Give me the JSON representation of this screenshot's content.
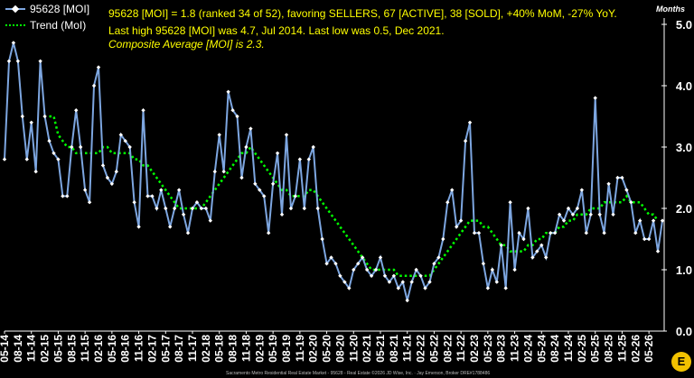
{
  "info": {
    "line1": "95628 [MOI] = 1.8 (ranked 34 of 52), favoring SELLERS, 67 [ACTIVE], 38 [SOLD], +40% MoM, -27% YoY.",
    "line2": "Last high 95628 [MOI] was 4.7, Jul 2014. Last low was 0.5, Dec 2021.",
    "line3": "Composite Average [MOI] is 2.3."
  },
  "footer": "Sacramento Metro Residential Real Estate Market - 95628 - Real Estate ©2026 JD Wise, Inc. · Jay Emerson, Broker DRE#1788486",
  "logo_text": "E",
  "colors": {
    "background": "#000000",
    "series_line": "#7da6e0",
    "series_marker": "#ffffff",
    "trend": "#00ff00",
    "info_text": "#ffff00"
  },
  "chart_data": {
    "type": "line",
    "ylabel": "Months",
    "ylim": [
      0,
      5
    ],
    "yticks": [
      "0.0",
      "1.0",
      "2.0",
      "3.0",
      "4.0",
      "5.0"
    ],
    "grid": false,
    "legend": "top-left",
    "x_start": "2014-05",
    "x_end": "2026-05",
    "xtick_labels": [
      "05-14",
      "11-14",
      "05-15",
      "11-15",
      "05-16",
      "11-16",
      "05-17",
      "11-17",
      "05-18",
      "11-18",
      "05-19",
      "11-19",
      "05-20",
      "11-20",
      "05-21",
      "11-21",
      "05-22",
      "11-22",
      "05-23",
      "11-23",
      "05-24",
      "11-24",
      "05-25",
      "11-25",
      "05-26"
    ],
    "xtick_minor_labels": [
      "08-14",
      "02-15",
      "08-15",
      "02-16",
      "08-16",
      "02-17",
      "08-17",
      "02-18",
      "08-18",
      "02-19",
      "08-19",
      "02-20",
      "08-20",
      "02-21",
      "08-21",
      "02-22",
      "08-22",
      "02-23",
      "08-23",
      "02-24",
      "08-24",
      "02-25",
      "08-25",
      "02-26"
    ],
    "series": [
      {
        "name": "95628 [MOI]",
        "values": [
          2.8,
          4.4,
          4.7,
          4.4,
          3.5,
          2.8,
          3.4,
          2.6,
          4.4,
          3.5,
          3.1,
          2.9,
          2.8,
          2.2,
          2.2,
          3.0,
          3.6,
          3.0,
          2.3,
          2.1,
          4.0,
          4.3,
          2.7,
          2.5,
          2.4,
          2.6,
          3.2,
          3.1,
          3.0,
          2.1,
          1.7,
          3.6,
          2.2,
          2.2,
          2.0,
          2.3,
          2.0,
          1.7,
          2.0,
          2.3,
          1.9,
          1.6,
          2.0,
          2.1,
          2.0,
          2.0,
          1.8,
          2.6,
          3.2,
          2.6,
          3.9,
          3.6,
          3.5,
          2.5,
          3.0,
          3.3,
          2.4,
          2.3,
          2.2,
          1.6,
          2.4,
          2.9,
          1.9,
          3.2,
          2.0,
          2.2,
          2.8,
          2.0,
          2.8,
          3.0,
          2.0,
          1.5,
          1.1,
          1.2,
          1.1,
          0.9,
          0.8,
          0.7,
          1.0,
          1.1,
          1.2,
          1.0,
          0.9,
          1.0,
          1.2,
          0.9,
          0.8,
          0.9,
          0.7,
          0.8,
          0.5,
          0.8,
          1.0,
          0.9,
          0.7,
          0.8,
          1.1,
          1.2,
          1.5,
          2.1,
          2.3,
          1.7,
          1.8,
          3.1,
          3.4,
          1.6,
          1.6,
          1.1,
          0.7,
          1.0,
          0.8,
          1.4,
          0.7,
          2.1,
          1.0,
          1.6,
          1.5,
          2.0,
          1.2,
          1.3,
          1.4,
          1.2,
          1.6,
          1.6,
          1.9,
          1.8,
          2.0,
          1.9,
          2.0,
          2.3,
          1.6,
          1.9,
          3.8,
          1.9,
          1.6,
          2.4,
          1.9,
          2.5,
          2.5,
          2.3,
          2.1,
          1.6,
          1.8,
          1.5,
          1.5,
          1.8,
          1.3,
          1.8
        ]
      },
      {
        "name": "Trend (MoI)",
        "values": [
          null,
          null,
          null,
          null,
          null,
          null,
          null,
          null,
          null,
          null,
          3.5,
          3.5,
          3.2,
          3.1,
          3.0,
          3.0,
          2.9,
          2.9,
          2.9,
          2.9,
          2.9,
          2.9,
          3.0,
          3.0,
          2.9,
          2.9,
          2.9,
          2.9,
          2.9,
          2.8,
          2.8,
          2.7,
          2.7,
          2.6,
          2.5,
          2.4,
          2.3,
          2.2,
          2.1,
          2.0,
          2.0,
          2.0,
          2.0,
          2.0,
          2.0,
          2.1,
          2.2,
          2.3,
          2.4,
          2.5,
          2.6,
          2.7,
          2.8,
          2.9,
          2.9,
          3.0,
          2.9,
          2.8,
          2.7,
          2.6,
          2.5,
          2.4,
          2.3,
          2.3,
          2.2,
          2.2,
          2.2,
          2.2,
          2.3,
          2.3,
          2.2,
          2.1,
          2.0,
          1.9,
          1.8,
          1.7,
          1.6,
          1.5,
          1.4,
          1.3,
          1.2,
          1.1,
          1.0,
          1.0,
          1.0,
          1.0,
          1.0,
          1.0,
          0.9,
          0.9,
          0.9,
          0.9,
          0.9,
          0.9,
          0.9,
          0.9,
          1.0,
          1.1,
          1.2,
          1.3,
          1.4,
          1.5,
          1.6,
          1.7,
          1.8,
          1.8,
          1.8,
          1.7,
          1.7,
          1.6,
          1.5,
          1.4,
          1.4,
          1.3,
          1.3,
          1.3,
          1.3,
          1.4,
          1.4,
          1.5,
          1.5,
          1.6,
          1.6,
          1.6,
          1.7,
          1.7,
          1.8,
          1.8,
          1.9,
          1.9,
          1.9,
          2.0,
          2.0,
          2.0,
          2.1,
          2.1,
          2.1,
          2.1,
          2.1,
          2.2,
          2.1,
          2.1,
          2.1,
          2.0,
          1.9,
          1.9,
          1.8
        ]
      }
    ]
  }
}
